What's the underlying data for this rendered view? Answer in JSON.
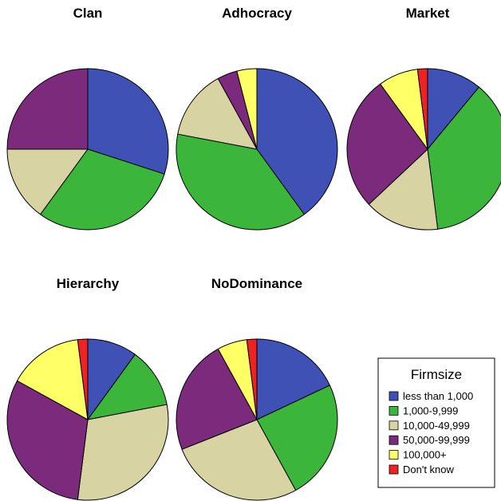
{
  "chart_data": [
    {
      "type": "pie",
      "title": "Clan",
      "slices": [
        {
          "category": "less than 1,000",
          "value": 30
        },
        {
          "category": "1,000-9,999",
          "value": 30
        },
        {
          "category": "10,000-49,999",
          "value": 15
        },
        {
          "category": "50,000-99,999",
          "value": 25
        },
        {
          "category": "100,000+",
          "value": 0
        },
        {
          "category": "Don't know",
          "value": 0
        }
      ]
    },
    {
      "type": "pie",
      "title": "Adhocracy",
      "slices": [
        {
          "category": "less than 1,000",
          "value": 40
        },
        {
          "category": "1,000-9,999",
          "value": 38
        },
        {
          "category": "10,000-49,999",
          "value": 14
        },
        {
          "category": "50,000-99,999",
          "value": 4
        },
        {
          "category": "100,000+",
          "value": 4
        },
        {
          "category": "Don't know",
          "value": 0
        }
      ]
    },
    {
      "type": "pie",
      "title": "Market",
      "slices": [
        {
          "category": "less than 1,000",
          "value": 11
        },
        {
          "category": "1,000-9,999",
          "value": 37
        },
        {
          "category": "10,000-49,999",
          "value": 15
        },
        {
          "category": "50,000-99,999",
          "value": 27
        },
        {
          "category": "100,000+",
          "value": 8
        },
        {
          "category": "Don't know",
          "value": 2
        }
      ]
    },
    {
      "type": "pie",
      "title": "Hierarchy",
      "slices": [
        {
          "category": "less than 1,000",
          "value": 10
        },
        {
          "category": "1,000-9,999",
          "value": 12
        },
        {
          "category": "10,000-49,999",
          "value": 30
        },
        {
          "category": "50,000-99,999",
          "value": 31
        },
        {
          "category": "100,000+",
          "value": 15
        },
        {
          "category": "Don't know",
          "value": 2
        }
      ]
    },
    {
      "type": "pie",
      "title": "NoDominance",
      "slices": [
        {
          "category": "less than 1,000",
          "value": 18
        },
        {
          "category": "1,000-9,999",
          "value": 24
        },
        {
          "category": "10,000-49,999",
          "value": 27
        },
        {
          "category": "50,000-99,999",
          "value": 23
        },
        {
          "category": "100,000+",
          "value": 6
        },
        {
          "category": "Don't know",
          "value": 2
        }
      ]
    }
  ],
  "legend": {
    "title": "Firmsize",
    "items": [
      {
        "label": "less than 1,000",
        "color": "#3F51B5"
      },
      {
        "label": "1,000-9,999",
        "color": "#3BB63B"
      },
      {
        "label": "10,000-49,999",
        "color": "#D8D3A3"
      },
      {
        "label": "50,000-99,999",
        "color": "#7B2A7C"
      },
      {
        "label": "100,000+",
        "color": "#FFFF66"
      },
      {
        "label": "Don't know",
        "color": "#EE2222"
      }
    ]
  }
}
